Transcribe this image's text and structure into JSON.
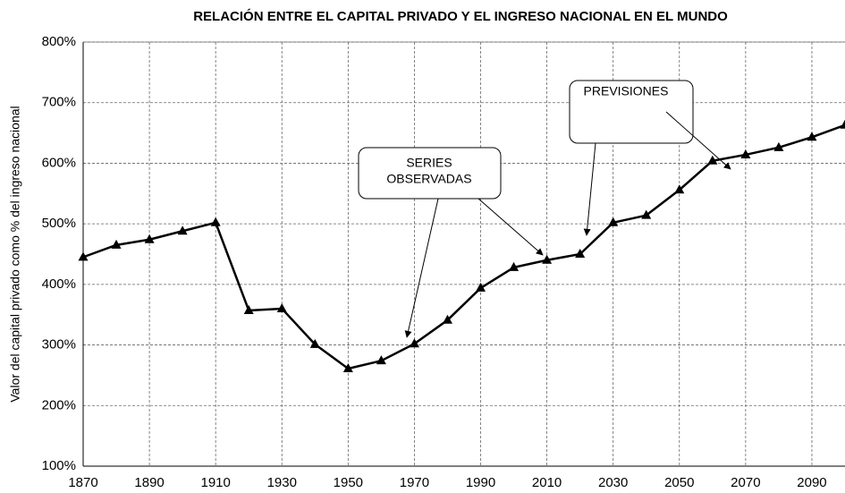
{
  "chart_data": {
    "type": "line",
    "title": "RELACIÓN ENTRE EL CAPITAL PRIVADO Y EL INGRESO NACIONAL EN EL MUNDO",
    "y_label": "Valor del capital privado como % del ingreso nacional",
    "x": [
      1870,
      1880,
      1890,
      1900,
      1910,
      1920,
      1930,
      1940,
      1950,
      1960,
      1970,
      1980,
      1990,
      2000,
      2010,
      2020,
      2030,
      2040,
      2050,
      2060,
      2070,
      2080,
      2090,
      2100
    ],
    "series": [
      {
        "color": "#000000",
        "values": [
          445,
          465,
          474,
          488,
          502,
          357,
          360,
          301,
          261,
          274,
          302,
          341,
          394,
          428,
          440,
          450,
          502,
          514,
          556,
          604,
          614,
          626,
          643,
          663
        ]
      }
    ],
    "xlim": [
      1870,
      2100
    ],
    "xticks": [
      1870,
      1890,
      1910,
      1930,
      1950,
      1970,
      1990,
      2010,
      2030,
      2050,
      2070,
      2090
    ],
    "ylim": [
      100,
      800
    ],
    "yticks": [
      {
        "value": 100,
        "label": "100%"
      },
      {
        "value": 200,
        "label": "200%"
      },
      {
        "value": 300,
        "label": "300%"
      },
      {
        "value": 400,
        "label": "400%"
      },
      {
        "value": 500,
        "label": "500%"
      },
      {
        "value": 600,
        "label": "600%"
      },
      {
        "value": 700,
        "label": "700%"
      },
      {
        "value": 800,
        "label": "800%"
      }
    ],
    "grid": true,
    "annotations": [
      {
        "lines": [
          "SERIES",
          "OBSERVADAS"
        ]
      },
      {
        "lines": [
          "PREVISIONES"
        ]
      }
    ]
  }
}
